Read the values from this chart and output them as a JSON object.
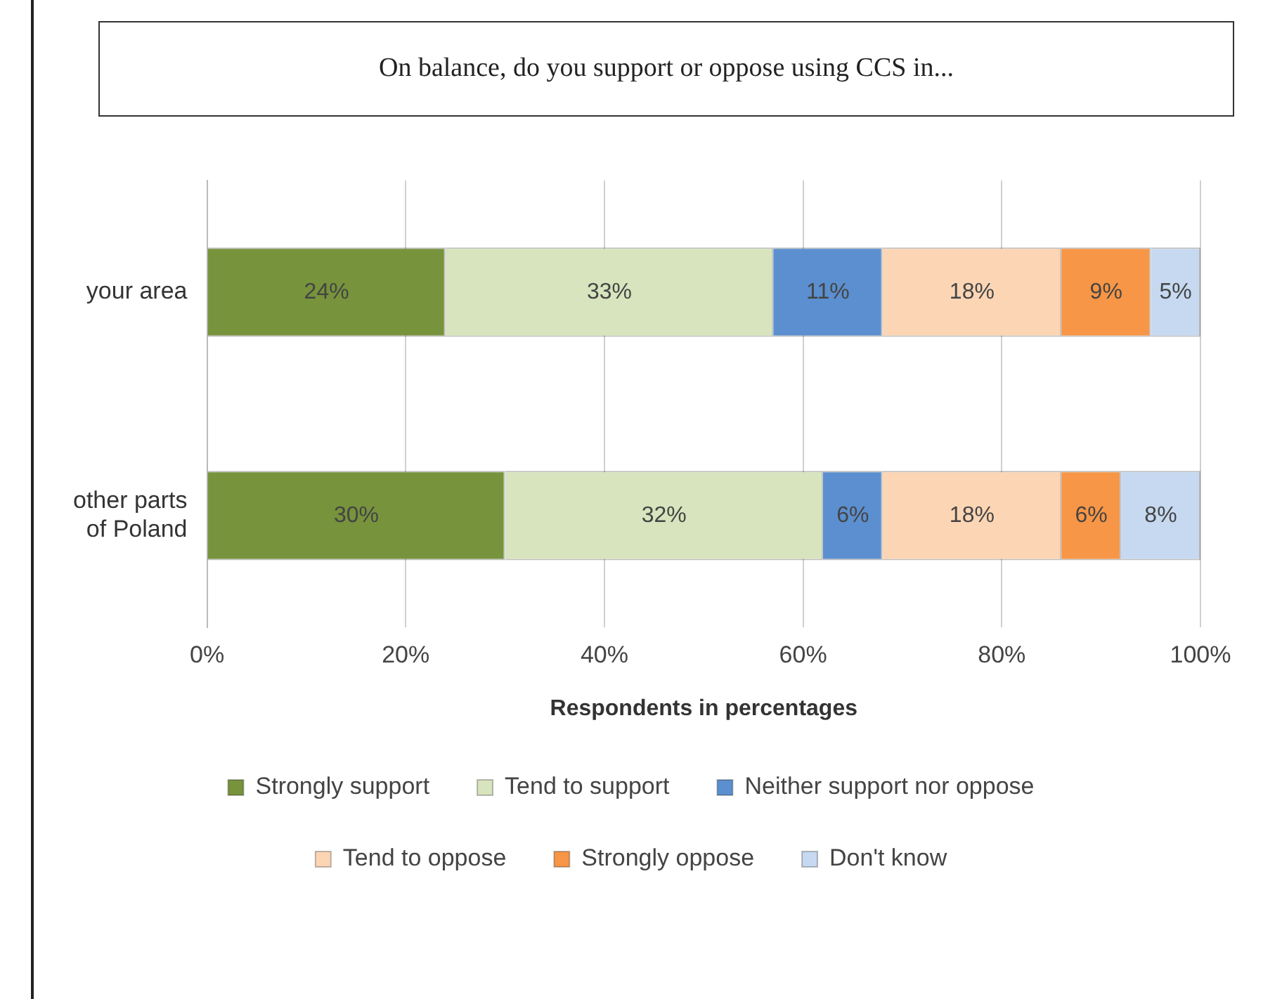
{
  "chart_data": {
    "type": "bar",
    "orientation": "horizontal",
    "stacked": true,
    "title": "On balance, do you support or oppose using CCS in...",
    "xlabel": "Respondents in percentages",
    "categories": [
      "your area",
      "other parts of Poland"
    ],
    "series": [
      {
        "name": "Strongly support",
        "color": "#77933c",
        "values": [
          24,
          30
        ],
        "value_labels": [
          "24%",
          "30%"
        ]
      },
      {
        "name": "Tend to support",
        "color": "#d7e4bd",
        "values": [
          33,
          32
        ],
        "value_labels": [
          "33%",
          "32%"
        ]
      },
      {
        "name": "Neither support nor oppose",
        "color": "#5b8fcf",
        "values": [
          11,
          6
        ],
        "value_labels": [
          "11%",
          "6%"
        ]
      },
      {
        "name": "Tend to oppose",
        "color": "#fcd5b5",
        "values": [
          18,
          18
        ],
        "value_labels": [
          "18%",
          "18%"
        ]
      },
      {
        "name": "Strongly oppose",
        "color": "#f79646",
        "values": [
          9,
          6
        ],
        "value_labels": [
          "9%",
          "6%"
        ]
      },
      {
        "name": "Don't know",
        "color": "#c6d9f1",
        "values": [
          5,
          8
        ],
        "value_labels": [
          "5%",
          "8%"
        ]
      }
    ],
    "xlim": [
      0,
      100
    ],
    "xticks": [
      {
        "value": 0,
        "label": "0%"
      },
      {
        "value": 20,
        "label": "20%"
      },
      {
        "value": 40,
        "label": "40%"
      },
      {
        "value": 60,
        "label": "60%"
      },
      {
        "value": 80,
        "label": "80%"
      },
      {
        "value": 100,
        "label": "100%"
      }
    ],
    "grid": "x",
    "legend": "bottom"
  }
}
